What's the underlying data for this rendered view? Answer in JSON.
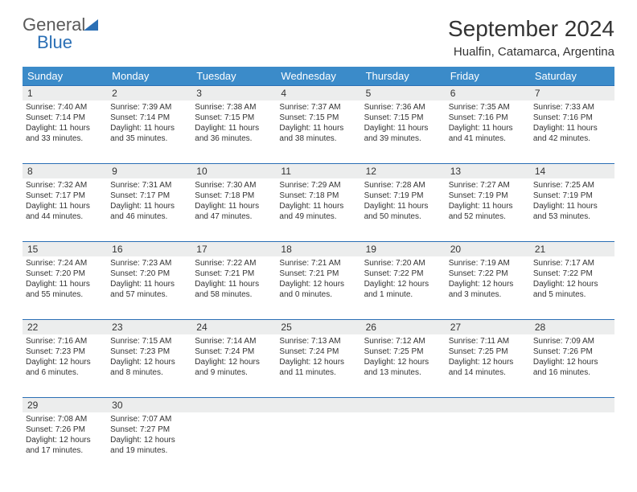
{
  "logo": {
    "line1": "General",
    "line2": "Blue"
  },
  "title": "September 2024",
  "location": "Hualfin, Catamarca, Argentina",
  "colors": {
    "header_bg": "#3b8bc9",
    "border": "#2a6fb5",
    "daynum_bg": "#eceded",
    "text": "#333333"
  },
  "day_names": [
    "Sunday",
    "Monday",
    "Tuesday",
    "Wednesday",
    "Thursday",
    "Friday",
    "Saturday"
  ],
  "weeks": [
    {
      "nums": [
        "1",
        "2",
        "3",
        "4",
        "5",
        "6",
        "7"
      ],
      "cells": [
        {
          "sr": "7:40 AM",
          "ss": "7:14 PM",
          "dl": "11 hours and 33 minutes."
        },
        {
          "sr": "7:39 AM",
          "ss": "7:14 PM",
          "dl": "11 hours and 35 minutes."
        },
        {
          "sr": "7:38 AM",
          "ss": "7:15 PM",
          "dl": "11 hours and 36 minutes."
        },
        {
          "sr": "7:37 AM",
          "ss": "7:15 PM",
          "dl": "11 hours and 38 minutes."
        },
        {
          "sr": "7:36 AM",
          "ss": "7:15 PM",
          "dl": "11 hours and 39 minutes."
        },
        {
          "sr": "7:35 AM",
          "ss": "7:16 PM",
          "dl": "11 hours and 41 minutes."
        },
        {
          "sr": "7:33 AM",
          "ss": "7:16 PM",
          "dl": "11 hours and 42 minutes."
        }
      ]
    },
    {
      "nums": [
        "8",
        "9",
        "10",
        "11",
        "12",
        "13",
        "14"
      ],
      "cells": [
        {
          "sr": "7:32 AM",
          "ss": "7:17 PM",
          "dl": "11 hours and 44 minutes."
        },
        {
          "sr": "7:31 AM",
          "ss": "7:17 PM",
          "dl": "11 hours and 46 minutes."
        },
        {
          "sr": "7:30 AM",
          "ss": "7:18 PM",
          "dl": "11 hours and 47 minutes."
        },
        {
          "sr": "7:29 AM",
          "ss": "7:18 PM",
          "dl": "11 hours and 49 minutes."
        },
        {
          "sr": "7:28 AM",
          "ss": "7:19 PM",
          "dl": "11 hours and 50 minutes."
        },
        {
          "sr": "7:27 AM",
          "ss": "7:19 PM",
          "dl": "11 hours and 52 minutes."
        },
        {
          "sr": "7:25 AM",
          "ss": "7:19 PM",
          "dl": "11 hours and 53 minutes."
        }
      ]
    },
    {
      "nums": [
        "15",
        "16",
        "17",
        "18",
        "19",
        "20",
        "21"
      ],
      "cells": [
        {
          "sr": "7:24 AM",
          "ss": "7:20 PM",
          "dl": "11 hours and 55 minutes."
        },
        {
          "sr": "7:23 AM",
          "ss": "7:20 PM",
          "dl": "11 hours and 57 minutes."
        },
        {
          "sr": "7:22 AM",
          "ss": "7:21 PM",
          "dl": "11 hours and 58 minutes."
        },
        {
          "sr": "7:21 AM",
          "ss": "7:21 PM",
          "dl": "12 hours and 0 minutes."
        },
        {
          "sr": "7:20 AM",
          "ss": "7:22 PM",
          "dl": "12 hours and 1 minute."
        },
        {
          "sr": "7:19 AM",
          "ss": "7:22 PM",
          "dl": "12 hours and 3 minutes."
        },
        {
          "sr": "7:17 AM",
          "ss": "7:22 PM",
          "dl": "12 hours and 5 minutes."
        }
      ]
    },
    {
      "nums": [
        "22",
        "23",
        "24",
        "25",
        "26",
        "27",
        "28"
      ],
      "cells": [
        {
          "sr": "7:16 AM",
          "ss": "7:23 PM",
          "dl": "12 hours and 6 minutes."
        },
        {
          "sr": "7:15 AM",
          "ss": "7:23 PM",
          "dl": "12 hours and 8 minutes."
        },
        {
          "sr": "7:14 AM",
          "ss": "7:24 PM",
          "dl": "12 hours and 9 minutes."
        },
        {
          "sr": "7:13 AM",
          "ss": "7:24 PM",
          "dl": "12 hours and 11 minutes."
        },
        {
          "sr": "7:12 AM",
          "ss": "7:25 PM",
          "dl": "12 hours and 13 minutes."
        },
        {
          "sr": "7:11 AM",
          "ss": "7:25 PM",
          "dl": "12 hours and 14 minutes."
        },
        {
          "sr": "7:09 AM",
          "ss": "7:26 PM",
          "dl": "12 hours and 16 minutes."
        }
      ]
    },
    {
      "nums": [
        "29",
        "30",
        "",
        "",
        "",
        "",
        ""
      ],
      "cells": [
        {
          "sr": "7:08 AM",
          "ss": "7:26 PM",
          "dl": "12 hours and 17 minutes."
        },
        {
          "sr": "7:07 AM",
          "ss": "7:27 PM",
          "dl": "12 hours and 19 minutes."
        },
        null,
        null,
        null,
        null,
        null
      ]
    }
  ],
  "labels": {
    "sunrise": "Sunrise:",
    "sunset": "Sunset:",
    "daylight": "Daylight:"
  }
}
